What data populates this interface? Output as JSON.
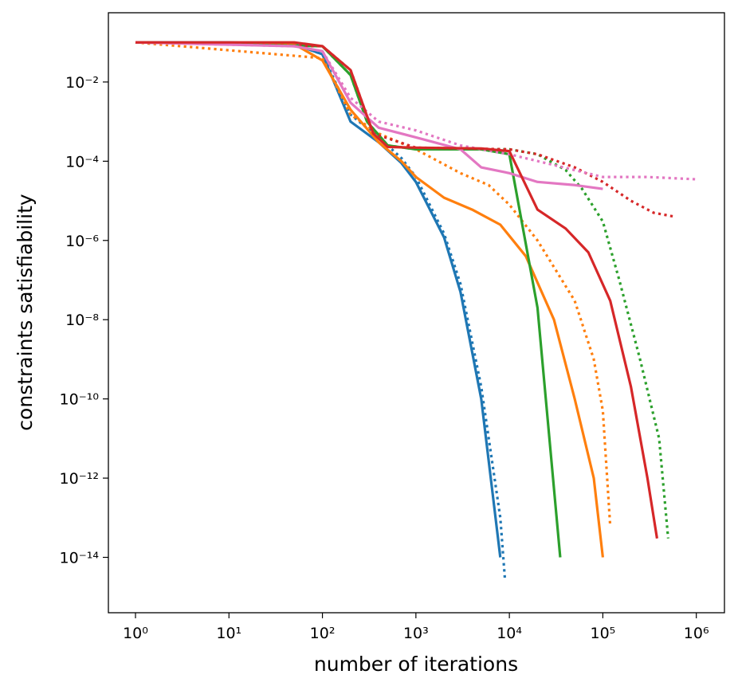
{
  "chart_data": {
    "type": "line",
    "xlabel": "number of iterations",
    "ylabel": "constraints satisfiability",
    "xscale": "log",
    "yscale": "log",
    "xlim": [
      0.513,
      2000000
    ],
    "ylim": [
      4e-16,
      0.56
    ],
    "xticks": [
      {
        "value": 1,
        "label": "10⁰"
      },
      {
        "value": 10,
        "label": "10¹"
      },
      {
        "value": 100,
        "label": "10²"
      },
      {
        "value": 1000,
        "label": "10³"
      },
      {
        "value": 10000,
        "label": "10⁴"
      },
      {
        "value": 100000,
        "label": "10⁵"
      },
      {
        "value": 1000000,
        "label": "10⁶"
      }
    ],
    "yticks": [
      {
        "value": 0.01,
        "label": "10⁻²"
      },
      {
        "value": 0.0001,
        "label": "10⁻⁴"
      },
      {
        "value": 1e-06,
        "label": "10⁻⁶"
      },
      {
        "value": 1e-08,
        "label": "10⁻⁸"
      },
      {
        "value": 1e-10,
        "label": "10⁻¹⁰"
      },
      {
        "value": 1e-12,
        "label": "10⁻¹²"
      },
      {
        "value": 1e-14,
        "label": "10⁻¹⁴"
      }
    ],
    "series": [
      {
        "color": "#1f77b4",
        "dash": "solid",
        "x": [
          1,
          10,
          50,
          100,
          200,
          400,
          700,
          1000,
          2000,
          3000,
          5000,
          8000
        ],
        "values": [
          0.1,
          0.1,
          0.09,
          0.05,
          0.001,
          0.0003,
          9e-05,
          3e-05,
          1.2e-06,
          5e-08,
          1e-10,
          1e-14
        ]
      },
      {
        "color": "#1f77b4",
        "dash": "dotted",
        "x": [
          1,
          50,
          100,
          200,
          400,
          700,
          1000,
          2000,
          3000,
          5000,
          8000,
          9000
        ],
        "values": [
          0.1,
          0.09,
          0.05,
          0.0015,
          0.0004,
          0.00012,
          4e-05,
          1.5e-06,
          8e-08,
          2e-10,
          1e-13,
          2.5e-15
        ]
      },
      {
        "color": "#ff7f0e",
        "dash": "solid",
        "x": [
          1,
          50,
          100,
          200,
          400,
          700,
          1000,
          2000,
          4000,
          8000,
          15000,
          30000,
          50000,
          80000,
          100000
        ],
        "values": [
          0.1,
          0.09,
          0.035,
          0.002,
          0.0003,
          0.0001,
          4e-05,
          1.2e-05,
          6e-06,
          2.5e-06,
          4e-07,
          1e-08,
          1e-10,
          1e-12,
          1e-14
        ]
      },
      {
        "color": "#ff7f0e",
        "dash": "dotted",
        "x": [
          1,
          100,
          200,
          400,
          1000,
          3000,
          6000,
          10000,
          20000,
          50000,
          80000,
          100000,
          120000
        ],
        "values": [
          0.1,
          0.04,
          0.0015,
          0.0005,
          0.0002,
          5e-05,
          2.5e-05,
          8e-06,
          1e-06,
          3e-08,
          1e-09,
          5e-11,
          6e-14
        ]
      },
      {
        "color": "#2ca02c",
        "dash": "solid",
        "x": [
          1,
          100,
          200,
          300,
          500,
          1000,
          5000,
          10000,
          20000,
          35000
        ],
        "values": [
          0.1,
          0.08,
          0.015,
          0.001,
          0.00025,
          0.0002,
          0.0002,
          0.00015,
          2e-08,
          1e-14
        ]
      },
      {
        "color": "#2ca02c",
        "dash": "dotted",
        "x": [
          1,
          100,
          200,
          300,
          500,
          1000,
          10000,
          20000,
          40000,
          60000,
          100000,
          150000,
          250000,
          400000,
          500000
        ],
        "values": [
          0.1,
          0.08,
          0.015,
          0.001,
          0.00025,
          0.0002,
          0.0002,
          0.00015,
          6e-05,
          2e-05,
          3e-06,
          1e-07,
          1e-09,
          1e-11,
          3e-14
        ]
      },
      {
        "color": "#d62728",
        "dash": "dotted",
        "x": [
          1,
          100,
          200,
          350,
          1000,
          10000,
          20000,
          50000,
          100000,
          200000,
          350000,
          580000
        ],
        "values": [
          0.1,
          0.08,
          0.02,
          0.0005,
          0.00022,
          0.0002,
          0.00015,
          7e-05,
          3e-05,
          1e-05,
          5e-06,
          4e-06
        ]
      },
      {
        "color": "#e377c2",
        "dash": "dotted",
        "x": [
          1,
          50,
          100,
          200,
          400,
          1000,
          3000,
          10000,
          30000,
          100000,
          300000,
          1000000
        ],
        "values": [
          0.1,
          0.08,
          0.06,
          0.004,
          0.001,
          0.0006,
          0.00025,
          0.00015,
          8e-05,
          4e-05,
          4e-05,
          3.5e-05
        ]
      },
      {
        "color": "#e377c2",
        "dash": "solid",
        "x": [
          1,
          50,
          100,
          200,
          400,
          1000,
          3000,
          5000,
          10000,
          20000,
          50000,
          100000
        ],
        "values": [
          0.1,
          0.08,
          0.06,
          0.003,
          0.0007,
          0.0004,
          0.0002,
          7e-05,
          5e-05,
          3e-05,
          2.5e-05,
          2e-05
        ]
      },
      {
        "color": "#d62728",
        "dash": "solid",
        "x": [
          1,
          50,
          100,
          200,
          350,
          500,
          1000,
          5000,
          10000,
          20000,
          40000,
          70000,
          120000,
          200000,
          300000,
          380000
        ],
        "values": [
          0.1,
          0.1,
          0.08,
          0.02,
          0.0005,
          0.00023,
          0.00022,
          0.00021,
          0.00018,
          6e-06,
          2e-06,
          5e-07,
          3e-08,
          2e-10,
          1e-12,
          3e-14
        ]
      }
    ]
  }
}
